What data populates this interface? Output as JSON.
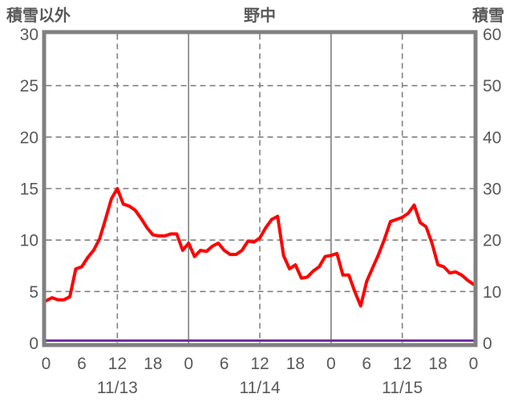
{
  "chart_data": {
    "type": "line",
    "title": "野中",
    "left_axis": {
      "title": "積雪以外",
      "min": 0,
      "max": 30,
      "ticks": [
        0,
        5,
        10,
        15,
        20,
        25,
        30
      ]
    },
    "right_axis": {
      "title": "積雪",
      "min": 0,
      "max": 60,
      "ticks": [
        0,
        10,
        20,
        30,
        40,
        50,
        60
      ]
    },
    "x_axis": {
      "hours_total": 72,
      "tick_step_hours": 6,
      "hour_labels": [
        "0",
        "6",
        "12",
        "18",
        "0",
        "6",
        "12",
        "18",
        "0",
        "6",
        "12",
        "18",
        "0"
      ],
      "date_labels": [
        "11/13",
        "11/14",
        "11/15"
      ]
    },
    "grid": {
      "h_lines": [
        5,
        10,
        15,
        20,
        25
      ],
      "v_lines": [
        {
          "hour": 12,
          "dash": true
        },
        {
          "hour": 24,
          "dash": false
        },
        {
          "hour": 36,
          "dash": true
        },
        {
          "hour": 48,
          "dash": false
        },
        {
          "hour": 60,
          "dash": true
        }
      ],
      "grid_color": "#808080",
      "border_color": "#808080"
    },
    "series": [
      {
        "name": "積雪以外",
        "axis": "left",
        "color": "#FF0000",
        "values": [
          4.1,
          4.4,
          4.2,
          4.2,
          4.5,
          7.2,
          7.4,
          8.3,
          9.0,
          10.1,
          12.0,
          14.0,
          15.0,
          13.5,
          13.3,
          12.9,
          12.1,
          11.2,
          10.5,
          10.4,
          10.4,
          10.6,
          10.6,
          9.0,
          9.7,
          8.4,
          9.0,
          8.9,
          9.4,
          9.7,
          9.0,
          8.6,
          8.6,
          9.0,
          9.9,
          9.8,
          10.2,
          11.2,
          12.0,
          12.3,
          8.5,
          7.2,
          7.6,
          6.3,
          6.4,
          7.0,
          7.4,
          8.4,
          8.5,
          8.7,
          6.6,
          6.6,
          5.0,
          3.6,
          6.0,
          7.3,
          8.6,
          10.1,
          11.8,
          12.0,
          12.2,
          12.6,
          13.4,
          11.7,
          11.3,
          9.7,
          7.6,
          7.4,
          6.8,
          6.9,
          6.6,
          6.1,
          5.7
        ]
      },
      {
        "name": "積雪",
        "axis": "right",
        "color": "#7030A0",
        "values": [
          0,
          0,
          0,
          0,
          0,
          0,
          0,
          0,
          0,
          0,
          0,
          0,
          0,
          0,
          0,
          0,
          0,
          0,
          0,
          0,
          0,
          0,
          0,
          0,
          0,
          0,
          0,
          0,
          0,
          0,
          0,
          0,
          0,
          0,
          0,
          0,
          0,
          0,
          0,
          0,
          0,
          0,
          0,
          0,
          0,
          0,
          0,
          0,
          0,
          0,
          0,
          0,
          0,
          0,
          0,
          0,
          0,
          0,
          0,
          0,
          0,
          0,
          0,
          0,
          0,
          0,
          0,
          0,
          0,
          0,
          0,
          0,
          0
        ]
      }
    ],
    "text_color": "#595959"
  }
}
